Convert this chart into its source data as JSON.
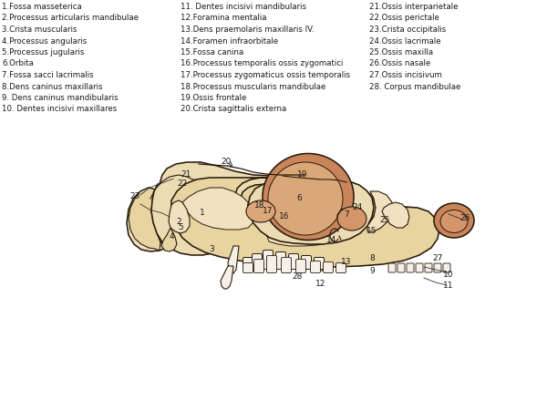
{
  "background_color": "#ffffff",
  "skull_cream": "#ecdcb4",
  "skull_cream2": "#e8d4a0",
  "skull_cream3": "#f0e2c0",
  "orbit_brown": "#c8855a",
  "orbit_brown2": "#d4956a",
  "orbit_light": "#daa878",
  "dark": "#2a1a0a",
  "text_color": "#1a1a1a",
  "line_color": "#333333",
  "legend_fontsize": 6.2,
  "legend_items_col1": [
    "1.Fossa masseterica",
    "2.Processus articularis mandibulae",
    "3.Crista muscularis",
    "4.Processus angularis",
    "5.Processus jugularis",
    "6.Orbita",
    "7.Fossa sacci lacrimalis",
    "8.Dens caninus maxillaris",
    "9. Dens caninus mandibularis",
    "10. Dentes incisivi maxillares"
  ],
  "legend_items_col2": [
    "11. Dentes incisivi mandibularis",
    "12.Foramina mentalia",
    "13.Dens praemolaris maxillaris IV.",
    "14.Foramen infraorbitale",
    "15.Fossa canina",
    "16.Processus temporalis ossis zygomatici",
    "17.Processus zygomaticus ossis temporalis",
    "18.Processus muscularis mandibulae",
    "19.Ossis frontale",
    "20.Crista sagittalis externa"
  ],
  "legend_items_col3": [
    "21.Ossis interparietale",
    "22.Ossis perictale",
    "23.Crista occipitalis",
    "24.Ossis lacrimale",
    "25.Ossis maxilla",
    "26.Ossis nasale",
    "27.Ossis incisivum",
    "28. Corpus mandibulae"
  ]
}
